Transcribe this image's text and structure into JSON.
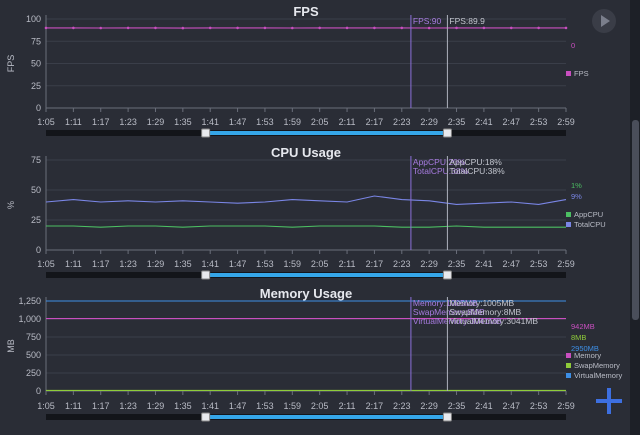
{
  "x_ticks": [
    "1:05",
    "1:11",
    "1:17",
    "1:23",
    "1:29",
    "1:35",
    "1:41",
    "1:47",
    "1:53",
    "1:59",
    "2:05",
    "2:11",
    "2:17",
    "2:23",
    "2:29",
    "2:35",
    "2:41",
    "2:47",
    "2:53",
    "2:59"
  ],
  "controls": {
    "play_icon": "play-icon",
    "add_icon": "plus-icon"
  },
  "chart_data": [
    {
      "type": "line",
      "title": "FPS",
      "ylabel": "FPS",
      "ylim": [
        0,
        100
      ],
      "yticks": [
        0,
        25,
        50,
        75,
        100
      ],
      "x_range": [
        "1:05",
        "2:59"
      ],
      "series": [
        {
          "name": "FPS",
          "color": "#c94fc0",
          "values": [
            90,
            90,
            89.9,
            90,
            90,
            89.8,
            90,
            90,
            90,
            89.9,
            90,
            90,
            90,
            90,
            89.9,
            90,
            90,
            90,
            90,
            90
          ]
        }
      ],
      "right_values": [
        "0"
      ],
      "cursor_a": {
        "x": "2:25",
        "labels": [
          "FPS:90"
        ]
      },
      "cursor_b": {
        "x": "2:33",
        "labels": [
          "FPS:89.9"
        ]
      },
      "range_handles": [
        "1:40",
        "2:33"
      ]
    },
    {
      "type": "line",
      "title": "CPU Usage",
      "ylabel": "%",
      "ylim": [
        0,
        75
      ],
      "yticks": [
        0,
        25,
        50,
        75
      ],
      "x_range": [
        "1:05",
        "2:59"
      ],
      "series": [
        {
          "name": "AppCPU",
          "color": "#4cbf63",
          "values": [
            20,
            20,
            19,
            20,
            20,
            19,
            20,
            20,
            20,
            19,
            20,
            20,
            20,
            19,
            19,
            20,
            19,
            19,
            19,
            19
          ]
        },
        {
          "name": "TotalCPU",
          "color": "#7a86e6",
          "values": [
            40,
            42,
            40,
            41,
            40,
            41,
            40,
            39,
            40,
            42,
            41,
            40,
            45,
            42,
            41,
            38,
            39,
            40,
            38,
            42
          ]
        }
      ],
      "right_values": [
        "1%",
        "9%"
      ],
      "cursor_a": {
        "x": "2:25",
        "labels": [
          "AppCPU:20%",
          "TotalCPU:38%"
        ]
      },
      "cursor_b": {
        "x": "2:33",
        "labels": [
          "AppCPU:18%",
          "TotalCPU:38%"
        ]
      },
      "range_handles": [
        "1:40",
        "2:33"
      ]
    },
    {
      "type": "line",
      "title": "Memory Usage",
      "ylabel": "MB",
      "ylim": [
        0,
        1250
      ],
      "yticks": [
        0,
        250,
        500,
        750,
        1000,
        1250
      ],
      "x_range": [
        "1:05",
        "2:59"
      ],
      "series": [
        {
          "name": "Memory",
          "color": "#c94fc0",
          "values": [
            1005,
            1005,
            1005,
            1005,
            1005,
            1005,
            1005,
            1005,
            1005,
            1005,
            1005,
            1005,
            1005,
            1005,
            1005,
            1005,
            1005,
            1005,
            1005,
            1005
          ]
        },
        {
          "name": "SwapMemory",
          "color": "#8fcc3a",
          "values": [
            8,
            8,
            8,
            8,
            8,
            8,
            8,
            8,
            8,
            8,
            8,
            8,
            8,
            8,
            8,
            8,
            8,
            8,
            8,
            8
          ]
        },
        {
          "name": "VirtualMemory",
          "color": "#3d8fe6",
          "values": [
            3041,
            3041,
            3041,
            3041,
            3041,
            3041,
            3041,
            3041,
            3041,
            3041,
            3041,
            3041,
            3041,
            3041,
            3041,
            3041,
            3041,
            3041,
            3041,
            3041
          ]
        }
      ],
      "right_values": [
        "942MB",
        "8MB",
        "2950MB"
      ],
      "cursor_a": {
        "x": "2:25",
        "labels": [
          "Memory:1005MB",
          "SwapMemory:8MB",
          "VirtualMemory:3041MB"
        ]
      },
      "cursor_b": {
        "x": "2:33",
        "labels": [
          "Memory:1005MB",
          "SwapMemory:8MB",
          "VirtualMemory:3041MB"
        ]
      },
      "range_handles": [
        "1:40",
        "2:33"
      ]
    }
  ]
}
